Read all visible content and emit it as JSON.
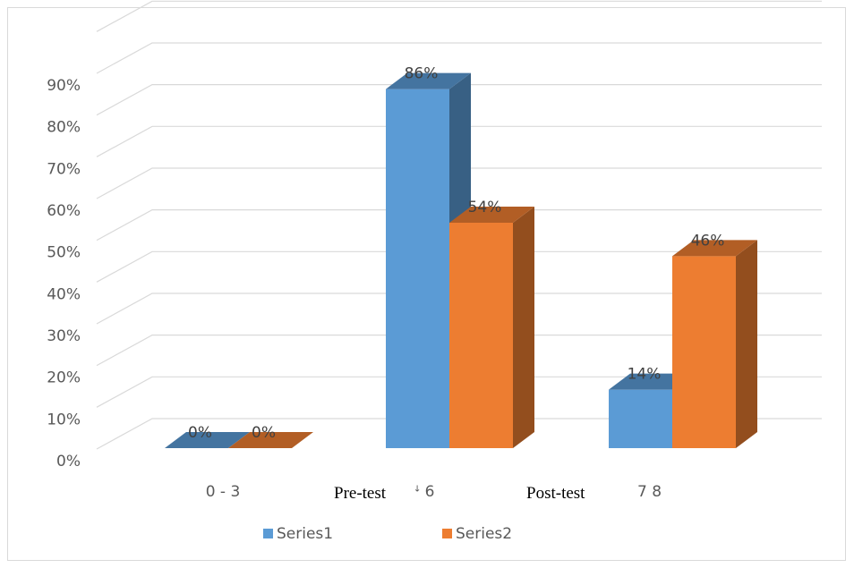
{
  "chart_data": {
    "type": "bar",
    "style": "3d-clustered-column",
    "categories": [
      "0 - 3",
      "Pre-test 4 6",
      "Post-test 7 8"
    ],
    "category_labels": [
      {
        "prefix": "",
        "range": "0 - 3"
      },
      {
        "prefix": "Pre-test",
        "range": "ꜜ 6"
      },
      {
        "prefix": "Post-test",
        "range": "7 8"
      }
    ],
    "series": [
      {
        "name": "Series1",
        "values": [
          0,
          86,
          14
        ],
        "color": "#5b9bd5"
      },
      {
        "name": "Series2",
        "values": [
          0,
          54,
          46
        ],
        "color": "#ed7d31"
      }
    ],
    "data_labels": [
      [
        "0%",
        "86%",
        "14%"
      ],
      [
        "0%",
        "54%",
        "46%"
      ]
    ],
    "yticks": [
      "0%",
      "10%",
      "20%",
      "30%",
      "40%",
      "50%",
      "60%",
      "70%",
      "80%",
      "90%"
    ],
    "ylim": [
      0,
      90
    ],
    "y_unit": "%",
    "gridlines": true,
    "legend_position": "bottom",
    "title": "",
    "xlabel": "",
    "ylabel": ""
  }
}
